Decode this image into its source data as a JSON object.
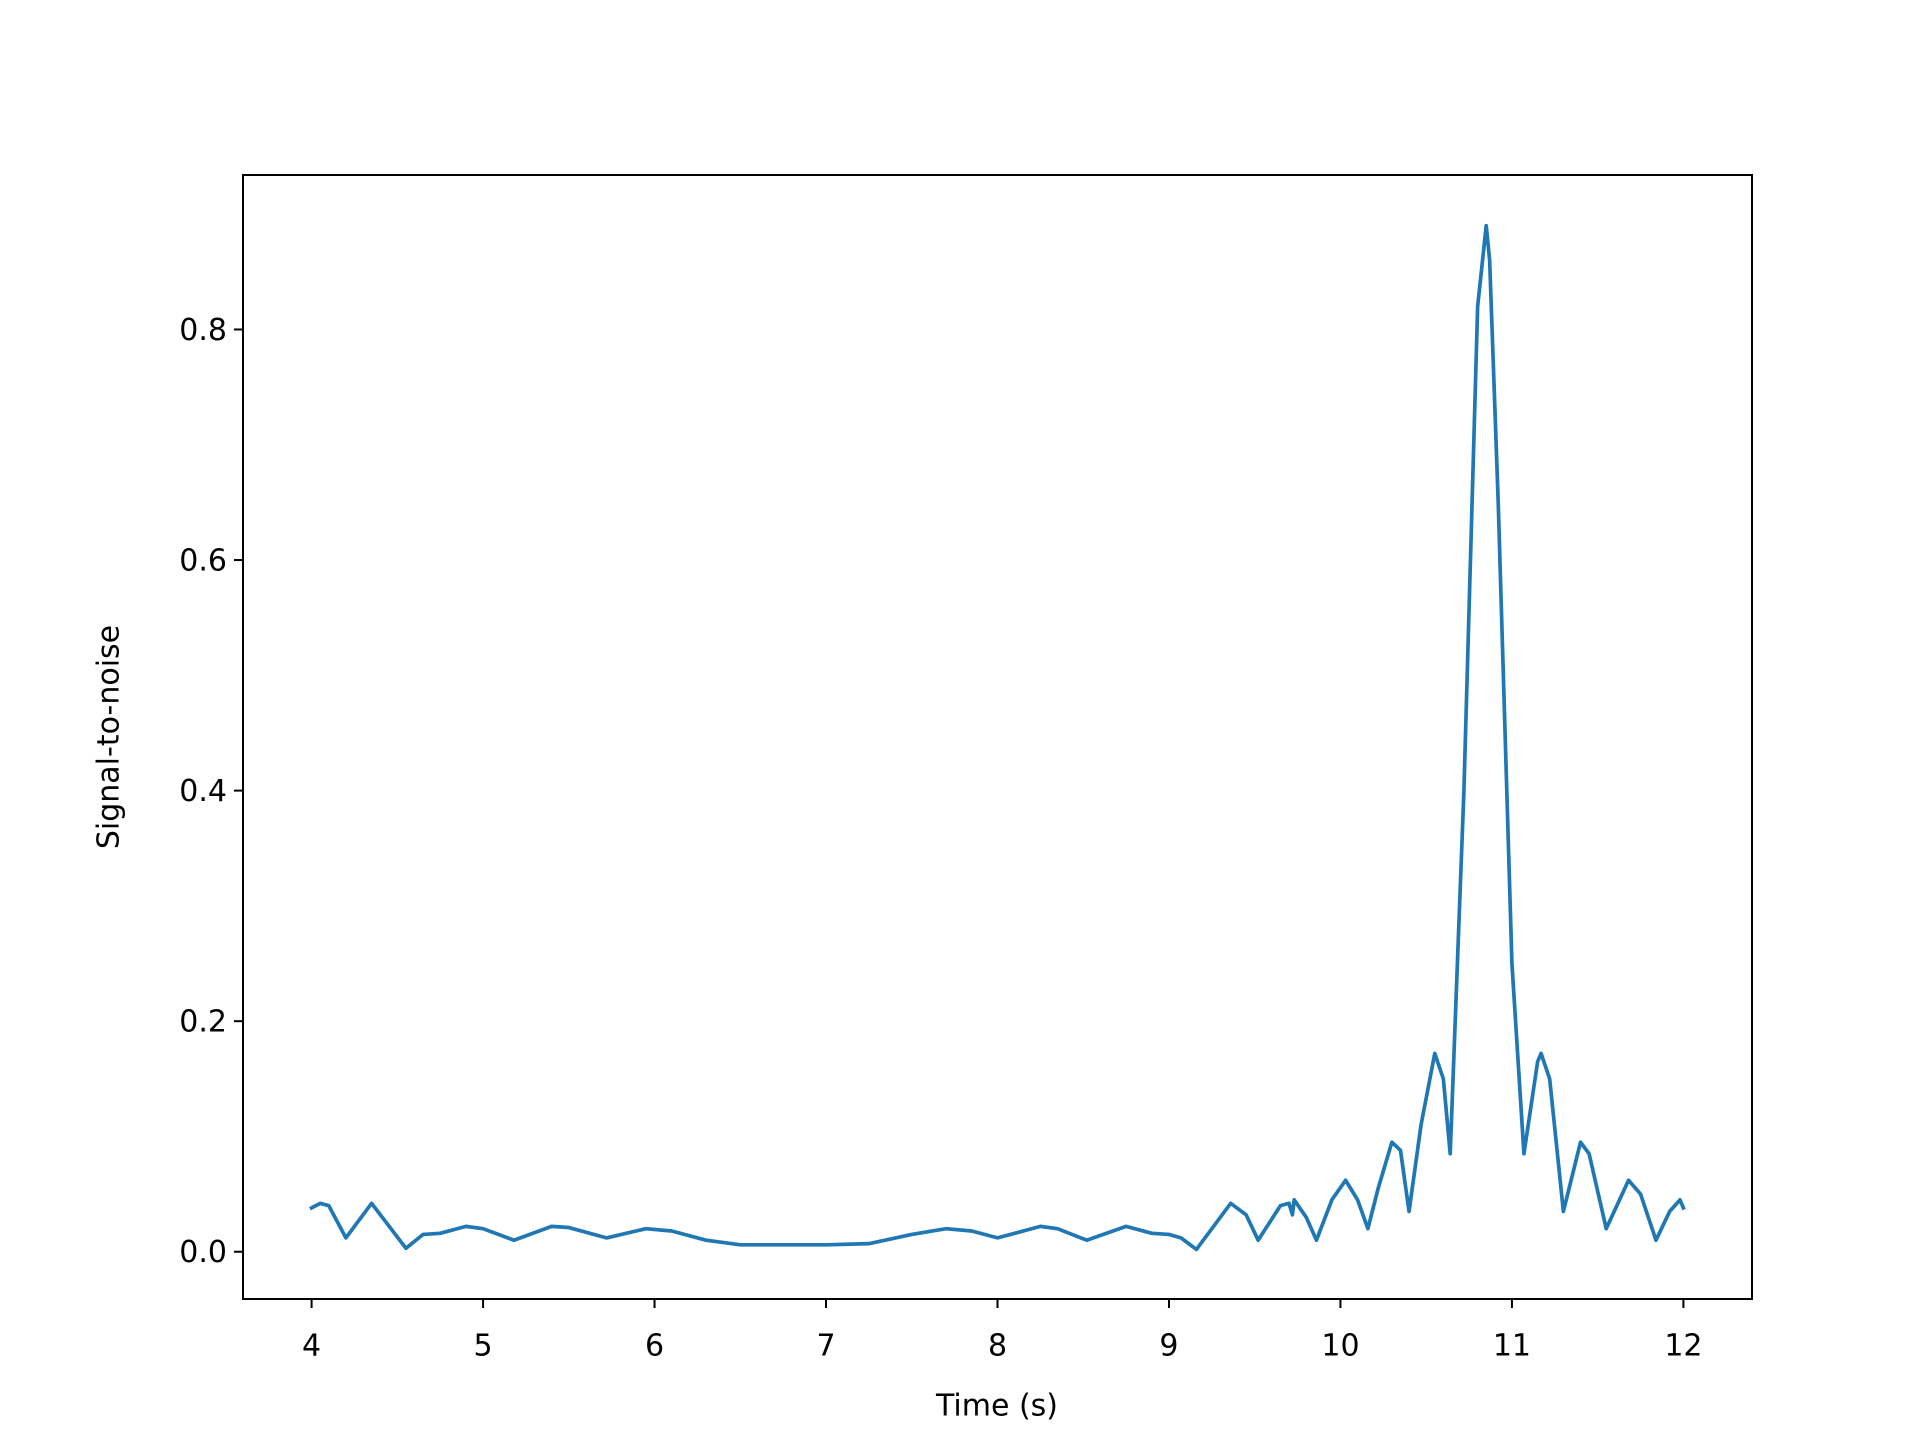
{
  "chart_data": {
    "type": "line",
    "xlabel": "Time (s)",
    "ylabel": "Signal-to-noise",
    "x": [
      4.0,
      4.05,
      4.1,
      4.2,
      4.35,
      4.55,
      4.65,
      4.75,
      4.9,
      5.0,
      5.18,
      5.4,
      5.5,
      5.72,
      5.95,
      6.1,
      6.3,
      6.5,
      7.0,
      7.25,
      7.5,
      7.7,
      7.85,
      8.0,
      8.25,
      8.35,
      8.52,
      8.75,
      8.9,
      9.0,
      9.07,
      9.16,
      9.25,
      9.36,
      9.45,
      9.52,
      9.65,
      9.7,
      9.72,
      9.73,
      9.8,
      9.86,
      9.95,
      10.03,
      10.1,
      10.16,
      10.22,
      10.3,
      10.35,
      10.4,
      10.47,
      10.55,
      10.6,
      10.64,
      10.72,
      10.8,
      10.85,
      10.87,
      10.92,
      11.0,
      11.07,
      11.15,
      11.17,
      11.22,
      11.3,
      11.4,
      11.45,
      11.55,
      11.68,
      11.75,
      11.84,
      11.92,
      11.98,
      12.0
    ],
    "values": [
      0.038,
      0.042,
      0.04,
      0.012,
      0.042,
      0.003,
      0.015,
      0.016,
      0.022,
      0.02,
      0.01,
      0.022,
      0.021,
      0.012,
      0.02,
      0.018,
      0.01,
      0.006,
      0.006,
      0.007,
      0.015,
      0.02,
      0.018,
      0.012,
      0.022,
      0.02,
      0.01,
      0.022,
      0.016,
      0.015,
      0.012,
      0.002,
      0.02,
      0.042,
      0.032,
      0.01,
      0.04,
      0.042,
      0.032,
      0.045,
      0.03,
      0.01,
      0.045,
      0.062,
      0.045,
      0.02,
      0.055,
      0.095,
      0.088,
      0.035,
      0.11,
      0.172,
      0.15,
      0.085,
      0.4,
      0.82,
      0.89,
      0.86,
      0.65,
      0.25,
      0.085,
      0.165,
      0.172,
      0.15,
      0.035,
      0.095,
      0.085,
      0.02,
      0.062,
      0.05,
      0.01,
      0.035,
      0.045,
      0.038
    ],
    "color": "#1f77b4",
    "xlim": [
      3.6,
      12.4
    ],
    "xticks": [
      4,
      5,
      6,
      7,
      8,
      9,
      10,
      11,
      12
    ],
    "ylim": [
      -0.041,
      0.934
    ],
    "yticks": [
      {
        "value": 0,
        "label": "0.0"
      },
      0.2,
      0.4,
      0.6,
      0.8
    ],
    "grid": false
  }
}
